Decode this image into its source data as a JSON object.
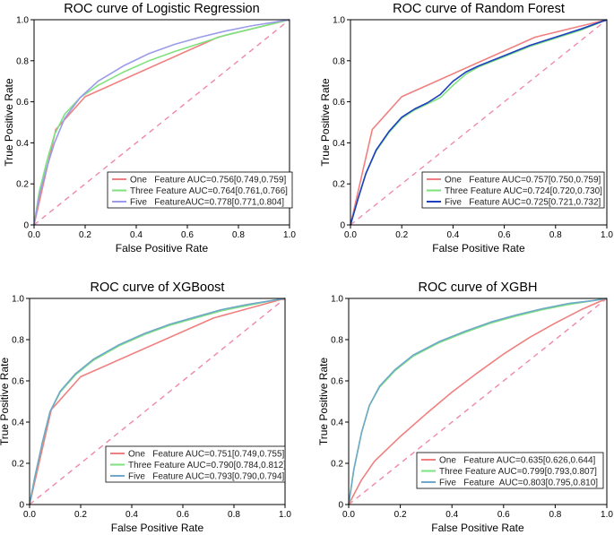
{
  "chart_data": [
    {
      "type": "line",
      "title": "ROC curve of Logistic Regression",
      "xlabel": "False Positive Rate",
      "ylabel": "True Positive Rate",
      "xlim": [
        0,
        1
      ],
      "ylim": [
        0,
        1
      ],
      "xticks": [
        "0.0",
        "0.2",
        "0.4",
        "0.6",
        "0.8",
        "1.0"
      ],
      "yticks": [
        "0",
        "0.2",
        "0.4",
        "0.6",
        "0.8",
        "1.0"
      ],
      "legend_position": "bottom-right",
      "series": [
        {
          "name": "One   Feature AUC=0.756[0.749,0.759]",
          "color": "#f08080",
          "x": [
            0,
            0.085,
            0.2,
            0.72,
            1
          ],
          "y": [
            0,
            0.465,
            0.625,
            0.915,
            1
          ]
        },
        {
          "name": "Three Feature AUC=0.764[0.761,0.766]",
          "color": "#7ee27e",
          "x": [
            0,
            0.02,
            0.05,
            0.08,
            0.12,
            0.18,
            0.25,
            0.35,
            0.45,
            0.55,
            0.65,
            0.75,
            0.85,
            0.95,
            1
          ],
          "y": [
            0,
            0.16,
            0.31,
            0.44,
            0.54,
            0.62,
            0.68,
            0.745,
            0.8,
            0.845,
            0.885,
            0.925,
            0.955,
            0.985,
            1
          ]
        },
        {
          "name": "Five   FeatureAUC=0.778[0.771,0.804]",
          "color": "#9b9bea",
          "x": [
            0,
            0.02,
            0.05,
            0.08,
            0.12,
            0.18,
            0.25,
            0.35,
            0.45,
            0.55,
            0.65,
            0.75,
            0.85,
            0.95,
            1
          ],
          "y": [
            0,
            0.14,
            0.28,
            0.4,
            0.52,
            0.62,
            0.7,
            0.775,
            0.835,
            0.88,
            0.915,
            0.945,
            0.97,
            0.99,
            1
          ]
        }
      ]
    },
    {
      "type": "line",
      "title": "ROC curve of Random Forest",
      "xlabel": "False Positive Rate",
      "ylabel": "True Positive Rate",
      "xlim": [
        0,
        1
      ],
      "ylim": [
        0,
        1
      ],
      "xticks": [
        "0.0",
        "0.2",
        "0.4",
        "0.6",
        "0.8",
        "1.0"
      ],
      "yticks": [
        "0",
        "0.2",
        "0.4",
        "0.6",
        "0.8",
        "1.0"
      ],
      "legend_position": "bottom-right",
      "series": [
        {
          "name": "One   Feature AUC=0.757[0.750,0.759]",
          "color": "#f08080",
          "x": [
            0,
            0.085,
            0.2,
            0.72,
            1
          ],
          "y": [
            0,
            0.465,
            0.625,
            0.915,
            1
          ]
        },
        {
          "name": "Three Feature AUC=0.724[0.720,0.730]",
          "color": "#7ee27e",
          "x": [
            0,
            0.03,
            0.06,
            0.1,
            0.15,
            0.2,
            0.25,
            0.3,
            0.35,
            0.4,
            0.45,
            0.5,
            0.6,
            0.7,
            0.8,
            0.9,
            1
          ],
          "y": [
            0,
            0.13,
            0.25,
            0.36,
            0.45,
            0.52,
            0.56,
            0.59,
            0.62,
            0.68,
            0.735,
            0.77,
            0.82,
            0.87,
            0.91,
            0.95,
            1
          ]
        },
        {
          "name": "Five   Feature AUC=0.725[0.721,0.732]",
          "color": "#1f3fbf",
          "x": [
            0,
            0.03,
            0.06,
            0.1,
            0.15,
            0.2,
            0.25,
            0.3,
            0.35,
            0.4,
            0.45,
            0.5,
            0.6,
            0.7,
            0.8,
            0.9,
            1
          ],
          "y": [
            0,
            0.13,
            0.25,
            0.365,
            0.455,
            0.525,
            0.565,
            0.595,
            0.635,
            0.7,
            0.745,
            0.775,
            0.825,
            0.875,
            0.915,
            0.955,
            1
          ]
        }
      ]
    },
    {
      "type": "line",
      "title": "ROC curve of XGBoost",
      "xlabel": "False Positive Rate",
      "ylabel": "True Positive Rate",
      "xlim": [
        0,
        1
      ],
      "ylim": [
        0,
        1
      ],
      "xticks": [
        "0.0",
        "0.2",
        "0.4",
        "0.6",
        "0.8",
        "1.0"
      ],
      "yticks": [
        "0",
        "0.2",
        "0.4",
        "0.6",
        "0.8",
        "1.0"
      ],
      "legend_position": "bottom-right",
      "series": [
        {
          "name": "One   Feature AUC=0.751[0.749,0.755]",
          "color": "#f08080",
          "x": [
            0,
            0.085,
            0.2,
            0.72,
            1
          ],
          "y": [
            0,
            0.46,
            0.62,
            0.905,
            1
          ]
        },
        {
          "name": "Three Feature AUC=0.790[0.784,0.812]",
          "color": "#7ee27e",
          "x": [
            0,
            0.02,
            0.05,
            0.08,
            0.12,
            0.18,
            0.25,
            0.35,
            0.45,
            0.55,
            0.65,
            0.75,
            0.85,
            0.95,
            1
          ],
          "y": [
            0,
            0.13,
            0.3,
            0.45,
            0.545,
            0.63,
            0.7,
            0.77,
            0.825,
            0.87,
            0.905,
            0.94,
            0.965,
            0.99,
            1
          ]
        },
        {
          "name": "Five   Feature AUC=0.793[0.790,0.794]",
          "color": "#6fa8c8",
          "x": [
            0,
            0.02,
            0.05,
            0.08,
            0.12,
            0.18,
            0.25,
            0.35,
            0.45,
            0.55,
            0.65,
            0.75,
            0.85,
            0.95,
            1
          ],
          "y": [
            0,
            0.13,
            0.3,
            0.45,
            0.55,
            0.635,
            0.705,
            0.775,
            0.83,
            0.875,
            0.91,
            0.945,
            0.97,
            0.99,
            1
          ]
        }
      ]
    },
    {
      "type": "line",
      "title": "ROC curve of XGBH",
      "xlabel": "False Positive Rate",
      "ylabel": "True Positive Rate",
      "xlim": [
        0,
        1
      ],
      "ylim": [
        0,
        1
      ],
      "xticks": [
        "0.0",
        "0.2",
        "0.4",
        "0.6",
        "0.8",
        "1.0"
      ],
      "yticks": [
        "0",
        "0.2",
        "0.4",
        "0.6",
        "0.8",
        "1.0"
      ],
      "legend_position": "bottom-right",
      "series": [
        {
          "name": "One   Feature AUC=0.635[0.626,0.644]",
          "color": "#f08080",
          "x": [
            0,
            0.05,
            0.1,
            0.2,
            0.3,
            0.4,
            0.5,
            0.6,
            0.7,
            0.8,
            0.9,
            1
          ],
          "y": [
            0,
            0.12,
            0.21,
            0.33,
            0.44,
            0.545,
            0.64,
            0.73,
            0.81,
            0.88,
            0.945,
            1
          ]
        },
        {
          "name": "Three Feature AUC=0.799[0.793,0.807]",
          "color": "#7ee27e",
          "x": [
            0,
            0.02,
            0.05,
            0.08,
            0.12,
            0.18,
            0.25,
            0.35,
            0.45,
            0.55,
            0.65,
            0.75,
            0.85,
            0.95,
            1
          ],
          "y": [
            0,
            0.17,
            0.35,
            0.48,
            0.57,
            0.65,
            0.72,
            0.785,
            0.835,
            0.88,
            0.915,
            0.945,
            0.97,
            0.99,
            1
          ]
        },
        {
          "name": "Five   Feature  AUC=0.803[0.795,0.810]",
          "color": "#6fa8c8",
          "x": [
            0,
            0.02,
            0.05,
            0.08,
            0.12,
            0.18,
            0.25,
            0.35,
            0.45,
            0.55,
            0.65,
            0.75,
            0.85,
            0.95,
            1
          ],
          "y": [
            0,
            0.17,
            0.35,
            0.48,
            0.575,
            0.655,
            0.725,
            0.79,
            0.84,
            0.885,
            0.92,
            0.95,
            0.975,
            0.99,
            1
          ]
        }
      ]
    }
  ],
  "colors": {
    "diagonal": "#ee88aa",
    "axis": "#000000",
    "legend_border": "#000000"
  }
}
